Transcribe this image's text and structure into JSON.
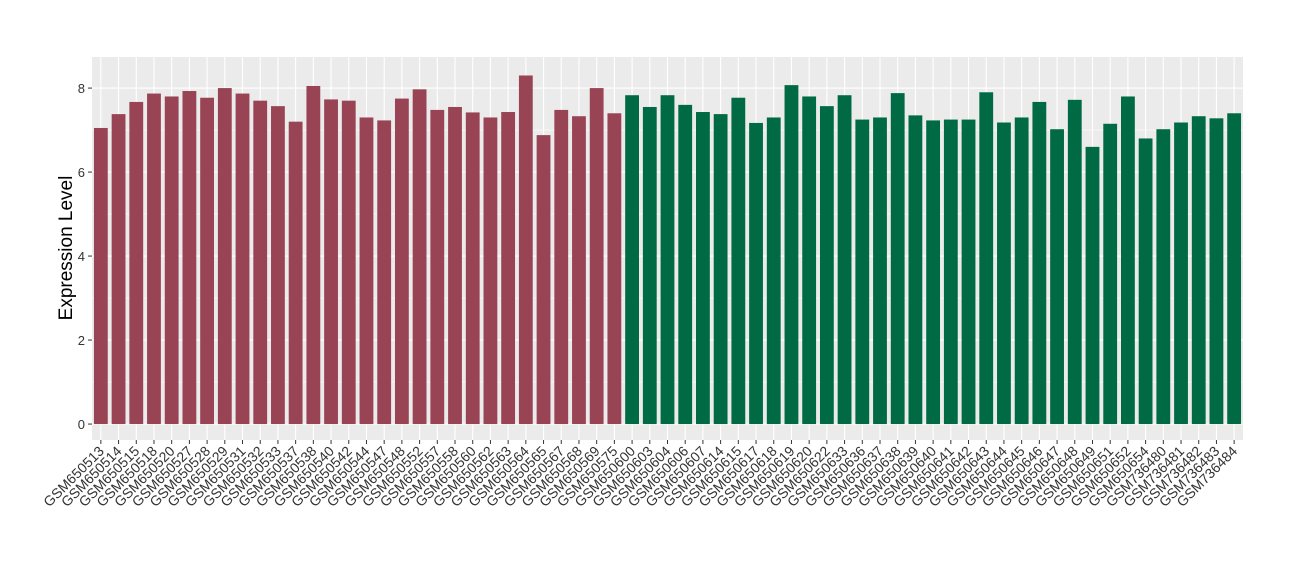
{
  "chart_data": {
    "type": "bar",
    "y_label": "Expression Level",
    "categories": [
      "GSM650513",
      "GSM650514",
      "GSM650515",
      "GSM650518",
      "GSM650520",
      "GSM650527",
      "GSM650528",
      "GSM650529",
      "GSM650531",
      "GSM650532",
      "GSM650533",
      "GSM650537",
      "GSM650538",
      "GSM650540",
      "GSM650542",
      "GSM650544",
      "GSM650547",
      "GSM650548",
      "GSM650552",
      "GSM650557",
      "GSM650558",
      "GSM650560",
      "GSM650562",
      "GSM650563",
      "GSM650564",
      "GSM650565",
      "GSM650567",
      "GSM650568",
      "GSM650569",
      "GSM650575",
      "GSM650600",
      "GSM650603",
      "GSM650604",
      "GSM650606",
      "GSM650607",
      "GSM650614",
      "GSM650615",
      "GSM650617",
      "GSM650618",
      "GSM650619",
      "GSM650620",
      "GSM650622",
      "GSM650633",
      "GSM650636",
      "GSM650637",
      "GSM650638",
      "GSM650639",
      "GSM650640",
      "GSM650641",
      "GSM650642",
      "GSM650643",
      "GSM650644",
      "GSM650645",
      "GSM650646",
      "GSM650647",
      "GSM650648",
      "GSM650649",
      "GSM650651",
      "GSM650652",
      "GSM650654",
      "GSM736480",
      "GSM736481",
      "GSM736482",
      "GSM736483",
      "GSM736484"
    ],
    "values": [
      7.05,
      7.38,
      7.67,
      7.87,
      7.8,
      7.93,
      7.77,
      8.0,
      7.87,
      7.7,
      7.57,
      7.2,
      8.05,
      7.73,
      7.7,
      7.3,
      7.23,
      7.75,
      7.97,
      7.48,
      7.55,
      7.42,
      7.3,
      7.43,
      8.3,
      6.88,
      7.48,
      7.33,
      8.0,
      7.4,
      7.83,
      7.55,
      7.83,
      7.6,
      7.43,
      7.38,
      7.77,
      7.17,
      7.3,
      8.07,
      7.8,
      7.57,
      7.83,
      7.25,
      7.3,
      7.88,
      7.35,
      7.23,
      7.25,
      7.25,
      7.9,
      7.18,
      7.3,
      7.67,
      7.02,
      7.72,
      6.6,
      7.15,
      7.8,
      6.8,
      7.02,
      7.18,
      7.33,
      7.28,
      7.4
    ],
    "colors": [
      "#994455",
      "#994455",
      "#994455",
      "#994455",
      "#994455",
      "#994455",
      "#994455",
      "#994455",
      "#994455",
      "#994455",
      "#994455",
      "#994455",
      "#994455",
      "#994455",
      "#994455",
      "#994455",
      "#994455",
      "#994455",
      "#994455",
      "#994455",
      "#994455",
      "#994455",
      "#994455",
      "#994455",
      "#994455",
      "#994455",
      "#994455",
      "#994455",
      "#994455",
      "#994455",
      "#006a45",
      "#006a45",
      "#006a45",
      "#006a45",
      "#006a45",
      "#006a45",
      "#006a45",
      "#006a45",
      "#006a45",
      "#006a45",
      "#006a45",
      "#006a45",
      "#006a45",
      "#006a45",
      "#006a45",
      "#006a45",
      "#006a45",
      "#006a45",
      "#006a45",
      "#006a45",
      "#006a45",
      "#006a45",
      "#006a45",
      "#006a45",
      "#006a45",
      "#006a45",
      "#006a45",
      "#006a45",
      "#006a45",
      "#006a45",
      "#006a45",
      "#006a45",
      "#006a45",
      "#006a45",
      "#006a45"
    ],
    "ylim": [
      -0.38,
      8.74
    ],
    "yticks": [
      0,
      2,
      4,
      6,
      8
    ],
    "grid": true
  }
}
